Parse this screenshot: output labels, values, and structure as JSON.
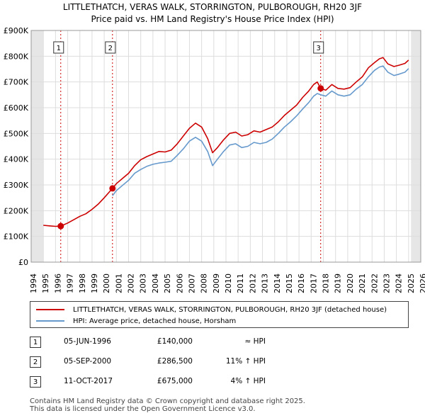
{
  "chart_data": {
    "type": "line",
    "title": "LITTLETHATCH, VERAS WALK, STORRINGTON, PULBOROUGH, RH20 3JF",
    "subtitle": "Price paid vs. HM Land Registry's House Price Index (HPI)",
    "xlabel": "",
    "ylabel": "",
    "xlim": [
      1994,
      2026
    ],
    "ylim": [
      0,
      900000
    ],
    "grid": true,
    "x_ticks": [
      "1994",
      "1995",
      "1996",
      "1997",
      "1998",
      "1999",
      "2000",
      "2001",
      "2002",
      "2003",
      "2004",
      "2005",
      "2006",
      "2007",
      "2008",
      "2009",
      "2010",
      "2011",
      "2012",
      "2013",
      "2014",
      "2015",
      "2016",
      "2017",
      "2018",
      "2019",
      "2020",
      "2021",
      "2022",
      "2023",
      "2024",
      "2025",
      "2026"
    ],
    "y_ticks": [
      {
        "value": 0,
        "label": "£0"
      },
      {
        "value": 100000,
        "label": "£100K"
      },
      {
        "value": 200000,
        "label": "£200K"
      },
      {
        "value": 300000,
        "label": "£300K"
      },
      {
        "value": 400000,
        "label": "£400K"
      },
      {
        "value": 500000,
        "label": "£500K"
      },
      {
        "value": 600000,
        "label": "£600K"
      },
      {
        "value": 700000,
        "label": "£700K"
      },
      {
        "value": 800000,
        "label": "£800K"
      },
      {
        "value": 900000,
        "label": "£900K"
      }
    ],
    "shaded_ranges": [
      [
        1994,
        1995.0
      ],
      [
        2025.2,
        2026
      ]
    ],
    "series": [
      {
        "name": "LITTLETHATCH, VERAS WALK, STORRINGTON, PULBOROUGH, RH20 3JF (detached house)",
        "color": "#cc0000",
        "points": [
          [
            1995.0,
            143000
          ],
          [
            1995.5,
            141000
          ],
          [
            1996.0,
            139000
          ],
          [
            1996.43,
            140000
          ],
          [
            1997.0,
            152000
          ],
          [
            1997.5,
            165000
          ],
          [
            1998.0,
            178000
          ],
          [
            1998.5,
            188000
          ],
          [
            1999.0,
            205000
          ],
          [
            1999.5,
            225000
          ],
          [
            2000.0,
            250000
          ],
          [
            2000.68,
            286500
          ],
          [
            2001.0,
            305000
          ],
          [
            2001.5,
            325000
          ],
          [
            2002.0,
            345000
          ],
          [
            2002.5,
            375000
          ],
          [
            2003.0,
            398000
          ],
          [
            2003.5,
            410000
          ],
          [
            2004.0,
            420000
          ],
          [
            2004.5,
            430000
          ],
          [
            2005.0,
            428000
          ],
          [
            2005.5,
            435000
          ],
          [
            2006.0,
            460000
          ],
          [
            2006.5,
            490000
          ],
          [
            2007.0,
            520000
          ],
          [
            2007.5,
            540000
          ],
          [
            2008.0,
            525000
          ],
          [
            2008.5,
            480000
          ],
          [
            2008.9,
            425000
          ],
          [
            2009.3,
            445000
          ],
          [
            2009.8,
            475000
          ],
          [
            2010.3,
            500000
          ],
          [
            2010.8,
            505000
          ],
          [
            2011.3,
            490000
          ],
          [
            2011.8,
            495000
          ],
          [
            2012.3,
            510000
          ],
          [
            2012.8,
            505000
          ],
          [
            2013.3,
            515000
          ],
          [
            2013.8,
            525000
          ],
          [
            2014.3,
            545000
          ],
          [
            2014.8,
            570000
          ],
          [
            2015.3,
            590000
          ],
          [
            2015.8,
            610000
          ],
          [
            2016.3,
            640000
          ],
          [
            2016.8,
            665000
          ],
          [
            2017.2,
            690000
          ],
          [
            2017.5,
            700000
          ],
          [
            2017.78,
            675000
          ],
          [
            2018.2,
            668000
          ],
          [
            2018.7,
            690000
          ],
          [
            2019.2,
            675000
          ],
          [
            2019.7,
            672000
          ],
          [
            2020.2,
            678000
          ],
          [
            2020.7,
            700000
          ],
          [
            2021.2,
            720000
          ],
          [
            2021.7,
            755000
          ],
          [
            2022.2,
            775000
          ],
          [
            2022.6,
            790000
          ],
          [
            2022.9,
            795000
          ],
          [
            2023.3,
            770000
          ],
          [
            2023.8,
            760000
          ],
          [
            2024.2,
            765000
          ],
          [
            2024.7,
            772000
          ],
          [
            2025.0,
            785000
          ]
        ]
      },
      {
        "name": "HPI: Average price, detached house, Horsham",
        "color": "#6699cc",
        "points": [
          [
            2000.68,
            258000
          ],
          [
            2001.0,
            278000
          ],
          [
            2001.5,
            298000
          ],
          [
            2002.0,
            318000
          ],
          [
            2002.5,
            345000
          ],
          [
            2003.0,
            360000
          ],
          [
            2003.5,
            372000
          ],
          [
            2004.0,
            380000
          ],
          [
            2004.5,
            385000
          ],
          [
            2005.0,
            388000
          ],
          [
            2005.5,
            392000
          ],
          [
            2006.0,
            415000
          ],
          [
            2006.5,
            440000
          ],
          [
            2007.0,
            470000
          ],
          [
            2007.5,
            485000
          ],
          [
            2008.0,
            470000
          ],
          [
            2008.5,
            430000
          ],
          [
            2008.9,
            375000
          ],
          [
            2009.3,
            400000
          ],
          [
            2009.8,
            430000
          ],
          [
            2010.3,
            455000
          ],
          [
            2010.8,
            460000
          ],
          [
            2011.3,
            445000
          ],
          [
            2011.8,
            450000
          ],
          [
            2012.3,
            465000
          ],
          [
            2012.8,
            460000
          ],
          [
            2013.3,
            465000
          ],
          [
            2013.8,
            478000
          ],
          [
            2014.3,
            500000
          ],
          [
            2014.8,
            525000
          ],
          [
            2015.3,
            545000
          ],
          [
            2015.8,
            568000
          ],
          [
            2016.3,
            595000
          ],
          [
            2016.8,
            620000
          ],
          [
            2017.2,
            645000
          ],
          [
            2017.5,
            655000
          ],
          [
            2017.78,
            650000
          ],
          [
            2018.2,
            645000
          ],
          [
            2018.7,
            665000
          ],
          [
            2019.2,
            650000
          ],
          [
            2019.7,
            645000
          ],
          [
            2020.2,
            650000
          ],
          [
            2020.7,
            672000
          ],
          [
            2021.2,
            690000
          ],
          [
            2021.7,
            720000
          ],
          [
            2022.2,
            745000
          ],
          [
            2022.6,
            758000
          ],
          [
            2022.9,
            762000
          ],
          [
            2023.3,
            738000
          ],
          [
            2023.8,
            725000
          ],
          [
            2024.2,
            730000
          ],
          [
            2024.7,
            738000
          ],
          [
            2025.0,
            752000
          ]
        ]
      }
    ],
    "sales": [
      {
        "num": "1",
        "x": 1996.43,
        "price_value": 140000,
        "date": "05-JUN-1996",
        "price": "£140,000",
        "hpi": "≈ HPI"
      },
      {
        "num": "2",
        "x": 2000.68,
        "price_value": 286500,
        "date": "05-SEP-2000",
        "price": "£286,500",
        "hpi": "11% ↑ HPI"
      },
      {
        "num": "3",
        "x": 2017.78,
        "price_value": 675000,
        "date": "11-OCT-2017",
        "price": "£675,000",
        "hpi": "4% ↑ HPI"
      }
    ]
  },
  "legend": {
    "property_label": "LITTLETHATCH, VERAS WALK, STORRINGTON, PULBOROUGH, RH20 3JF (detached house)",
    "hpi_label": "HPI: Average price, detached house, Horsham"
  },
  "colors": {
    "property": "#cc0000",
    "hpi": "#6699cc",
    "grid": "#dddddd",
    "shade": "#e6e6e6",
    "marker": "#cc0000"
  },
  "footer": {
    "line1": "Contains HM Land Registry data © Crown copyright and database right 2025.",
    "line2": "This data is licensed under the Open Government Licence v3.0."
  }
}
